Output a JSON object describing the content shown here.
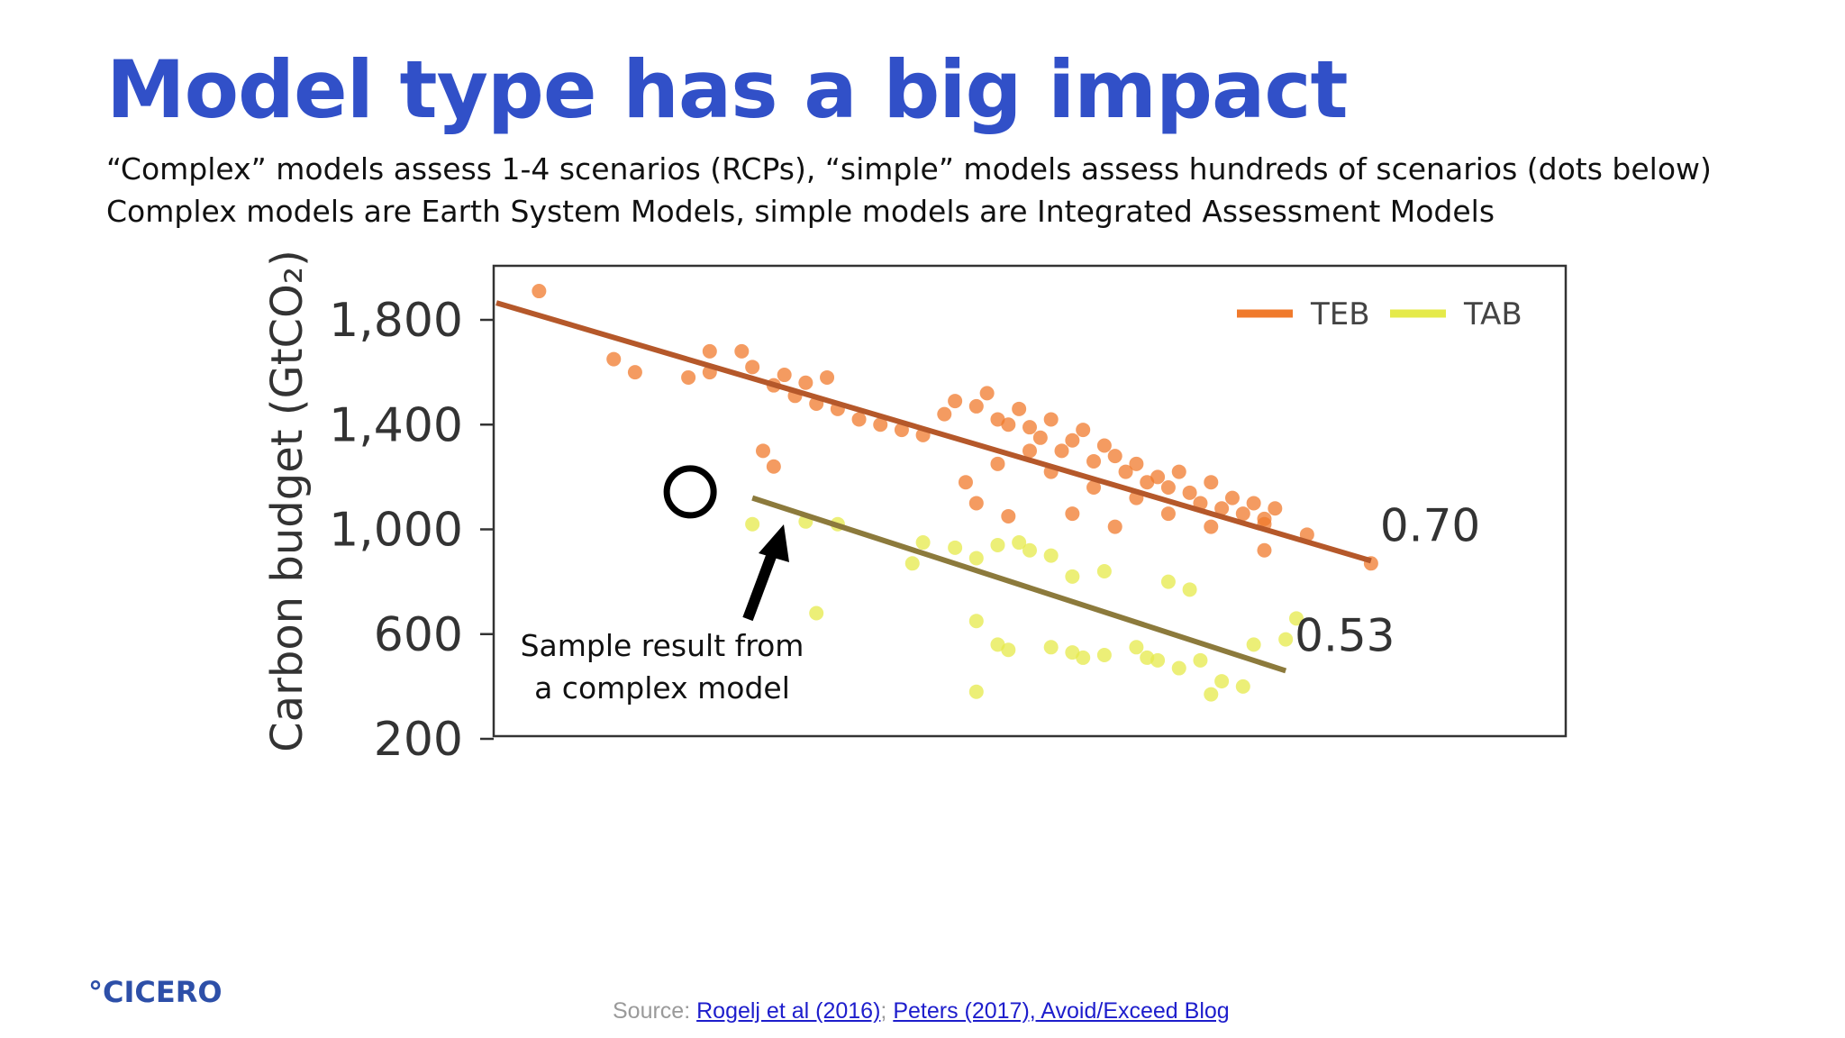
{
  "slide": {
    "title": "Model type has a big impact",
    "subtitle_1": "“Complex” models assess 1-4 scenarios (RCPs), “simple” models assess hundreds of scenarios (dots below)",
    "subtitle_2": "Complex models are Earth System Models, simple models are Integrated Assessment Models",
    "logo_text": "°CICERO",
    "source_label": "Source: ",
    "source_link_1": "Rogelj et al (2016)",
    "source_separator": "; ",
    "source_link_2": "Peters (2017), Avoid/Exceed Blog"
  },
  "chart_data": {
    "type": "scatter",
    "ylabel": "Carbon budget (GtCO₂)",
    "yticks": [
      "1,800",
      "1,400",
      "1,000",
      "600",
      "200"
    ],
    "ytick_values": [
      1800,
      1400,
      1000,
      600,
      200
    ],
    "ylim": [
      200,
      1800
    ],
    "xlim": [
      0,
      1
    ],
    "x_ticks_labeled": false,
    "legend_position": "top-right",
    "annotation": "Sample result from a complex model",
    "highlighted_point": {
      "x": 0.18,
      "y": 1150
    },
    "series": [
      {
        "name": "TEB",
        "color": "#f07a2c",
        "line_color": "#b5582a",
        "fit": {
          "x": [
            0.0,
            0.82
          ],
          "y": [
            1865,
            880
          ]
        },
        "fit_label": "0.70",
        "points": [
          {
            "x": 0.04,
            "y": 1910
          },
          {
            "x": 0.11,
            "y": 1650
          },
          {
            "x": 0.13,
            "y": 1600
          },
          {
            "x": 0.18,
            "y": 1580
          },
          {
            "x": 0.2,
            "y": 1600
          },
          {
            "x": 0.2,
            "y": 1680
          },
          {
            "x": 0.23,
            "y": 1680
          },
          {
            "x": 0.24,
            "y": 1620
          },
          {
            "x": 0.26,
            "y": 1550
          },
          {
            "x": 0.27,
            "y": 1590
          },
          {
            "x": 0.29,
            "y": 1560
          },
          {
            "x": 0.31,
            "y": 1580
          },
          {
            "x": 0.28,
            "y": 1510
          },
          {
            "x": 0.3,
            "y": 1480
          },
          {
            "x": 0.32,
            "y": 1460
          },
          {
            "x": 0.34,
            "y": 1420
          },
          {
            "x": 0.36,
            "y": 1400
          },
          {
            "x": 0.38,
            "y": 1380
          },
          {
            "x": 0.4,
            "y": 1360
          },
          {
            "x": 0.42,
            "y": 1440
          },
          {
            "x": 0.43,
            "y": 1490
          },
          {
            "x": 0.45,
            "y": 1470
          },
          {
            "x": 0.46,
            "y": 1520
          },
          {
            "x": 0.47,
            "y": 1420
          },
          {
            "x": 0.48,
            "y": 1400
          },
          {
            "x": 0.49,
            "y": 1460
          },
          {
            "x": 0.5,
            "y": 1390
          },
          {
            "x": 0.51,
            "y": 1350
          },
          {
            "x": 0.52,
            "y": 1420
          },
          {
            "x": 0.53,
            "y": 1300
          },
          {
            "x": 0.54,
            "y": 1340
          },
          {
            "x": 0.55,
            "y": 1380
          },
          {
            "x": 0.56,
            "y": 1260
          },
          {
            "x": 0.57,
            "y": 1320
          },
          {
            "x": 0.58,
            "y": 1280
          },
          {
            "x": 0.59,
            "y": 1220
          },
          {
            "x": 0.6,
            "y": 1250
          },
          {
            "x": 0.61,
            "y": 1180
          },
          {
            "x": 0.62,
            "y": 1200
          },
          {
            "x": 0.63,
            "y": 1160
          },
          {
            "x": 0.64,
            "y": 1220
          },
          {
            "x": 0.65,
            "y": 1140
          },
          {
            "x": 0.66,
            "y": 1100
          },
          {
            "x": 0.67,
            "y": 1180
          },
          {
            "x": 0.68,
            "y": 1080
          },
          {
            "x": 0.69,
            "y": 1120
          },
          {
            "x": 0.7,
            "y": 1060
          },
          {
            "x": 0.71,
            "y": 1100
          },
          {
            "x": 0.72,
            "y": 1040
          },
          {
            "x": 0.73,
            "y": 1080
          },
          {
            "x": 0.25,
            "y": 1300
          },
          {
            "x": 0.26,
            "y": 1240
          },
          {
            "x": 0.44,
            "y": 1180
          },
          {
            "x": 0.47,
            "y": 1250
          },
          {
            "x": 0.5,
            "y": 1300
          },
          {
            "x": 0.52,
            "y": 1220
          },
          {
            "x": 0.56,
            "y": 1160
          },
          {
            "x": 0.6,
            "y": 1120
          },
          {
            "x": 0.63,
            "y": 1060
          },
          {
            "x": 0.67,
            "y": 1010
          },
          {
            "x": 0.45,
            "y": 1100
          },
          {
            "x": 0.48,
            "y": 1050
          },
          {
            "x": 0.54,
            "y": 1060
          },
          {
            "x": 0.58,
            "y": 1010
          },
          {
            "x": 0.72,
            "y": 1020
          },
          {
            "x": 0.76,
            "y": 980
          },
          {
            "x": 0.72,
            "y": 920
          },
          {
            "x": 0.82,
            "y": 870
          }
        ]
      },
      {
        "name": "TAB",
        "color": "#e5ea4a",
        "line_color": "#8c7a3c",
        "fit": {
          "x": [
            0.24,
            0.74
          ],
          "y": [
            1120,
            460
          ]
        },
        "fit_label": "0.53",
        "points": [
          {
            "x": 0.24,
            "y": 1020
          },
          {
            "x": 0.29,
            "y": 1030
          },
          {
            "x": 0.32,
            "y": 1020
          },
          {
            "x": 0.3,
            "y": 680
          },
          {
            "x": 0.39,
            "y": 870
          },
          {
            "x": 0.4,
            "y": 950
          },
          {
            "x": 0.43,
            "y": 930
          },
          {
            "x": 0.45,
            "y": 890
          },
          {
            "x": 0.47,
            "y": 940
          },
          {
            "x": 0.49,
            "y": 950
          },
          {
            "x": 0.5,
            "y": 920
          },
          {
            "x": 0.52,
            "y": 900
          },
          {
            "x": 0.54,
            "y": 820
          },
          {
            "x": 0.57,
            "y": 840
          },
          {
            "x": 0.63,
            "y": 800
          },
          {
            "x": 0.65,
            "y": 770
          },
          {
            "x": 0.45,
            "y": 650
          },
          {
            "x": 0.47,
            "y": 560
          },
          {
            "x": 0.48,
            "y": 540
          },
          {
            "x": 0.52,
            "y": 550
          },
          {
            "x": 0.54,
            "y": 530
          },
          {
            "x": 0.55,
            "y": 510
          },
          {
            "x": 0.57,
            "y": 520
          },
          {
            "x": 0.6,
            "y": 550
          },
          {
            "x": 0.61,
            "y": 510
          },
          {
            "x": 0.62,
            "y": 500
          },
          {
            "x": 0.64,
            "y": 470
          },
          {
            "x": 0.66,
            "y": 500
          },
          {
            "x": 0.68,
            "y": 420
          },
          {
            "x": 0.7,
            "y": 400
          },
          {
            "x": 0.71,
            "y": 560
          },
          {
            "x": 0.74,
            "y": 580
          },
          {
            "x": 0.75,
            "y": 660
          },
          {
            "x": 0.45,
            "y": 380
          },
          {
            "x": 0.67,
            "y": 370
          }
        ]
      }
    ]
  }
}
